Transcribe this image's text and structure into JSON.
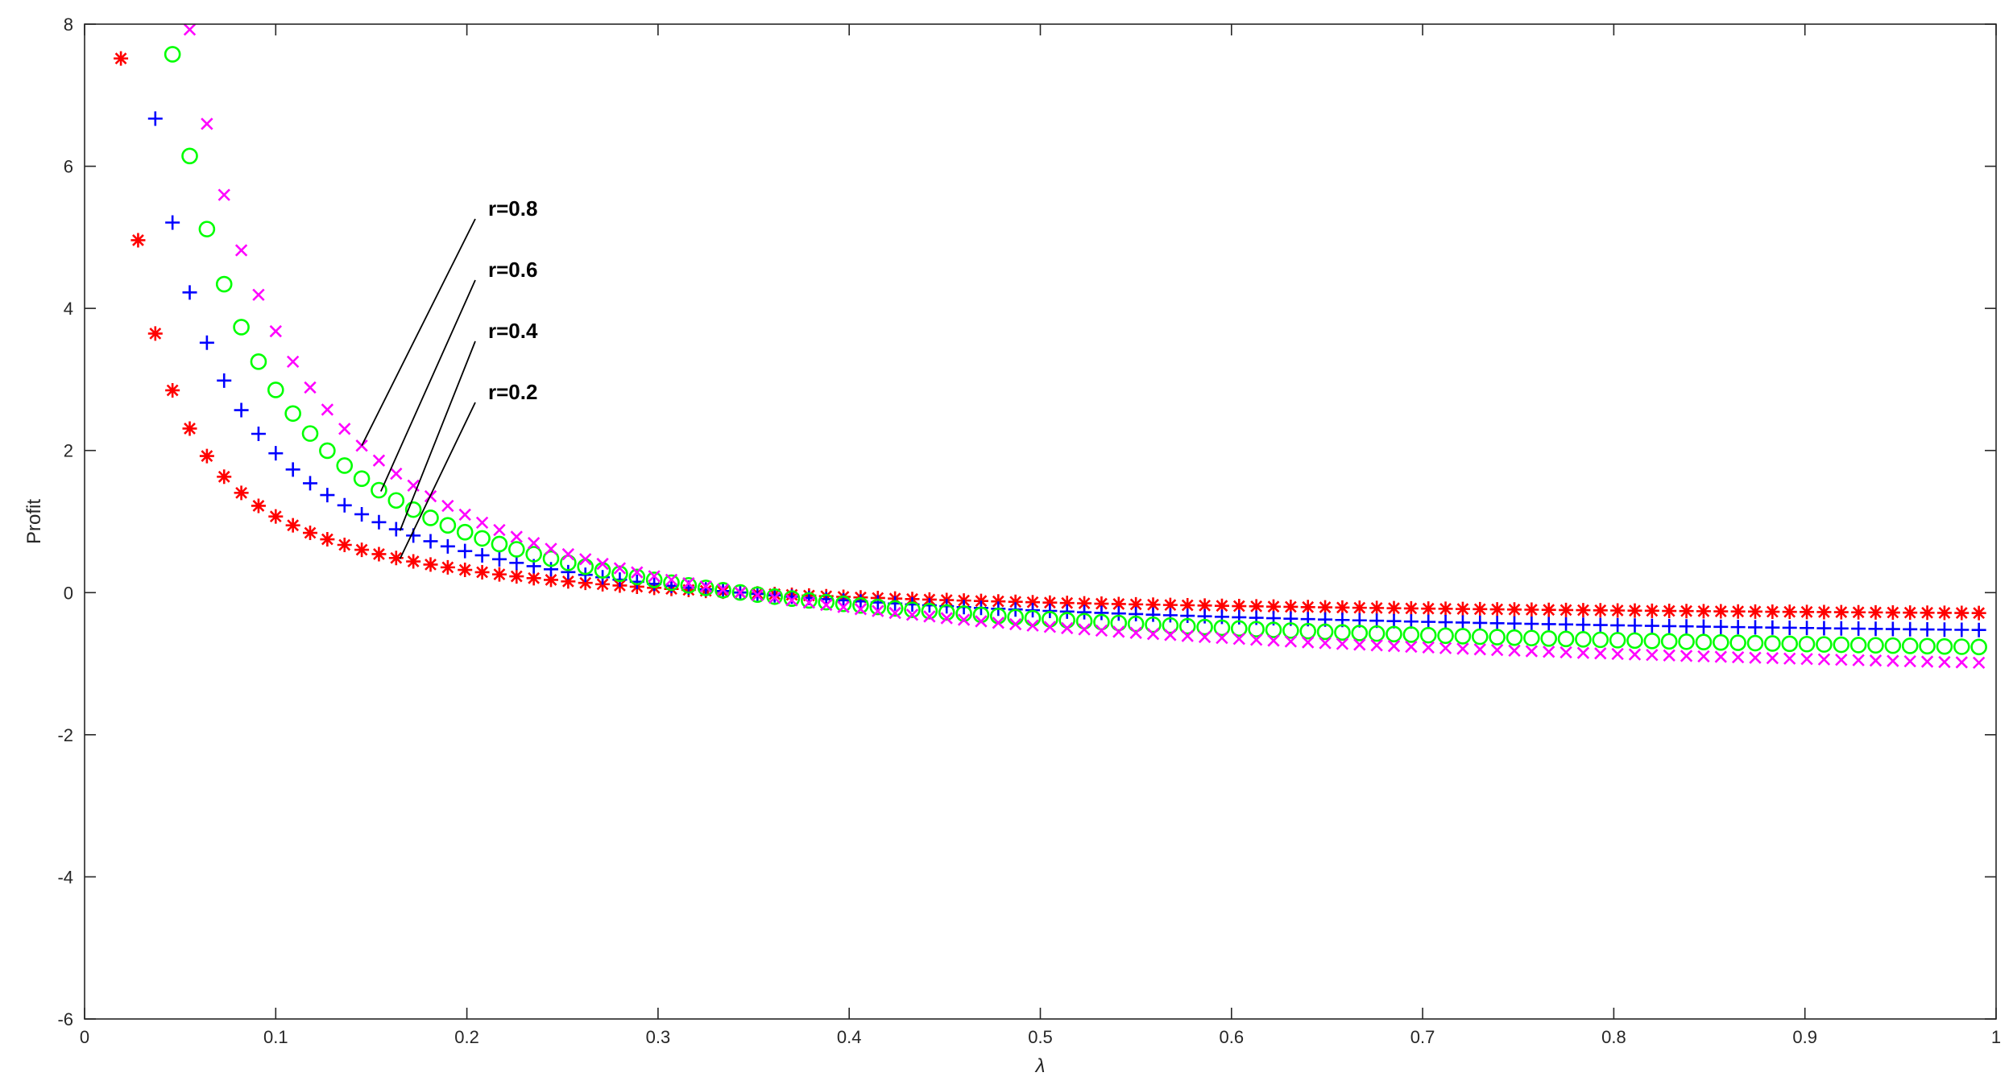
{
  "chart_data": {
    "type": "scatter",
    "title": "",
    "xlabel": "λ",
    "ylabel": "Profit",
    "xlim": [
      0,
      1
    ],
    "ylim": [
      -6,
      8
    ],
    "xticks": [
      "0",
      "0.1",
      "0.2",
      "0.3",
      "0.4",
      "0.5",
      "0.6",
      "0.7",
      "0.8",
      "0.9",
      "1"
    ],
    "yticks": [
      "-6",
      "-4",
      "-2",
      "0",
      "2",
      "4",
      "6",
      "8"
    ],
    "grid": false,
    "x_start": 0.01,
    "x_step": 0.009,
    "x_count": 110,
    "series": [
      {
        "label": "r=0.2",
        "marker": "asterisk",
        "color": "#ff0000",
        "model": {
          "k": 0.44,
          "xref": 0.3436,
          "c": 0.7263
        },
        "annotation_x": 0.165
      },
      {
        "label": "r=0.4",
        "marker": "plus",
        "color": "#0000ff",
        "model": {
          "k": 0.805,
          "xref": 0.3436,
          "c": 0.9434
        },
        "annotation_x": 0.165
      },
      {
        "label": "r=0.6",
        "marker": "circle",
        "color": "#00ff00",
        "model": {
          "k": 1.171,
          "xref": 0.3436,
          "c": 1.0
        },
        "annotation_x": 0.155
      },
      {
        "label": "r=0.8",
        "marker": "x",
        "color": "#ff00ff",
        "model": {
          "k": 1.51,
          "xref": 0.3436,
          "c": 1.0
        },
        "annotation_x": 0.145
      }
    ]
  }
}
